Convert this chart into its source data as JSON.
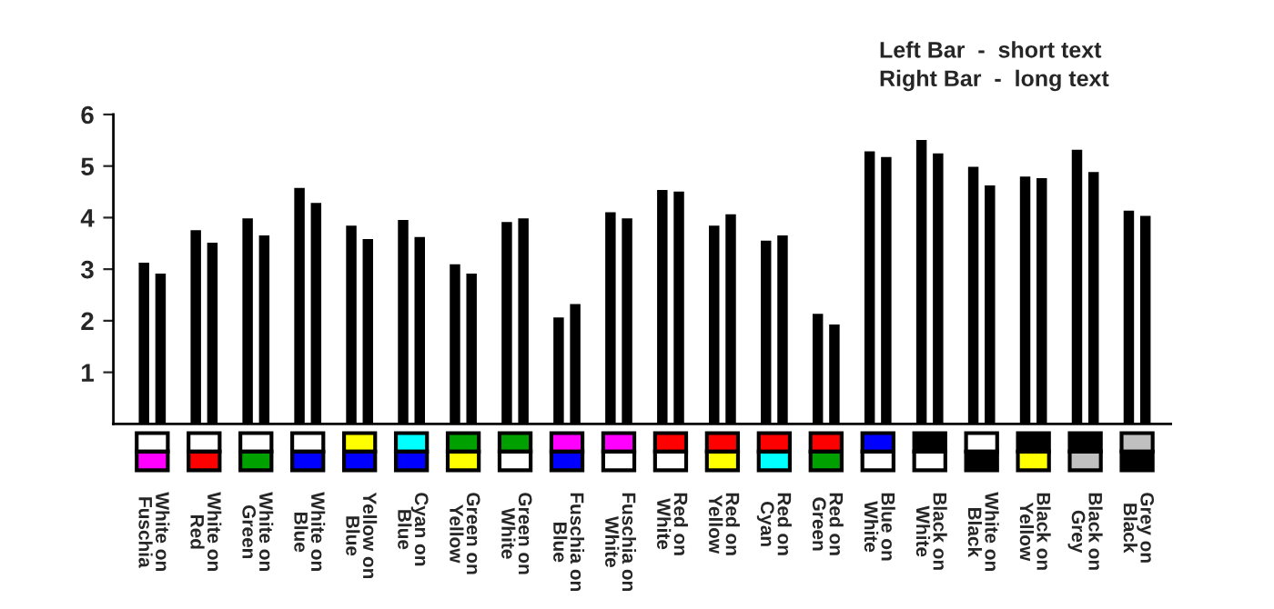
{
  "chart_data": {
    "type": "bar",
    "categories": [
      "White on\nFuschia",
      "White on\nRed",
      "White on\nGreen",
      "White on\nBlue",
      "Yellow on\nBlue",
      "Cyan on\nBlue",
      "Green on\nYellow",
      "Green on\nWhite",
      "Fuschia on\nBlue",
      "Fuschia on\nWhite",
      "Red on\nWhite",
      "Red on\nYellow",
      "Red on\nCyan",
      "Red on\nGreen",
      "Blue on\nWhite",
      "Black on\nWhite",
      "White on\nBlack",
      "Black on\nYellow",
      "Black on\nGrey",
      "Grey on\nBlack"
    ],
    "series": [
      {
        "color": "#000000",
        "values": [
          3.15,
          3.78,
          4.01,
          4.6,
          3.87,
          3.98,
          3.12,
          3.94,
          2.09,
          4.13,
          4.56,
          3.87,
          3.58,
          2.16,
          5.31,
          5.53,
          5.01,
          4.82,
          5.34,
          4.16
        ]
      },
      {
        "color": "#000000",
        "values": [
          2.94,
          3.54,
          3.68,
          4.31,
          3.61,
          3.65,
          2.94,
          4.01,
          2.35,
          4.01,
          4.53,
          4.09,
          3.68,
          1.95,
          5.2,
          5.27,
          4.65,
          4.79,
          4.91,
          4.06
        ]
      }
    ],
    "ylim": [
      0,
      6
    ],
    "yticks": [
      1,
      2,
      3,
      4,
      5,
      6
    ],
    "grid": false,
    "legend": false,
    "annotations": [
      "Left Bar  -  short text",
      "Right Bar  -  long text"
    ]
  }
}
